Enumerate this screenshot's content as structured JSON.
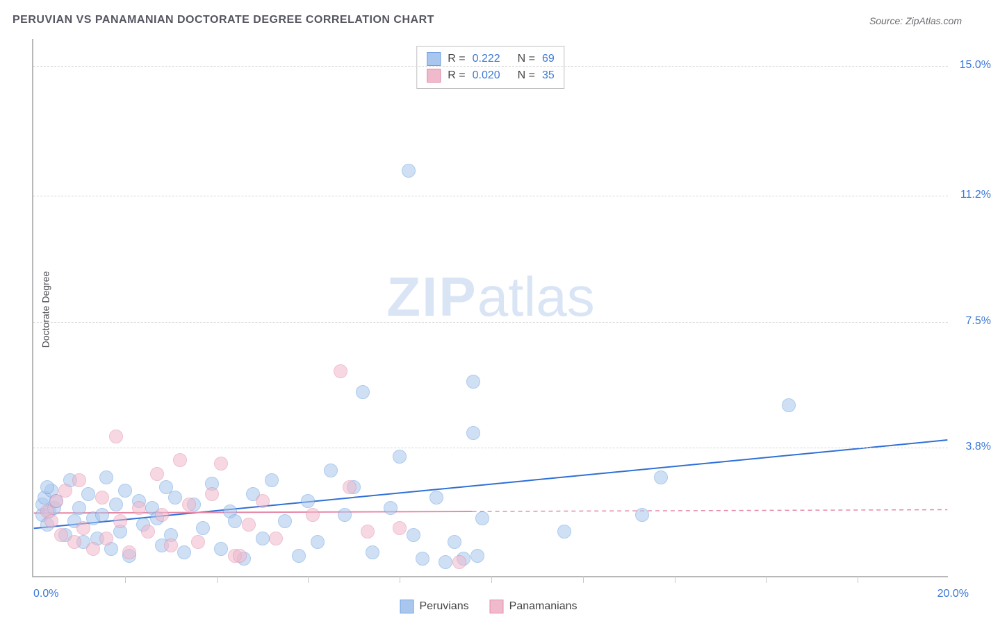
{
  "title": "PERUVIAN VS PANAMANIAN DOCTORATE DEGREE CORRELATION CHART",
  "source": "Source: ZipAtlas.com",
  "ylabel": "Doctorate Degree",
  "watermark_zip": "ZIP",
  "watermark_atlas": "atlas",
  "chart": {
    "type": "scatter",
    "xlim": [
      0,
      20
    ],
    "ylim": [
      0,
      15.8
    ],
    "x_min_label": "0.0%",
    "x_max_label": "20.0%",
    "x_tick_step": 2.0,
    "y_gridlines": [
      {
        "value": 3.8,
        "label": "3.8%"
      },
      {
        "value": 7.5,
        "label": "7.5%"
      },
      {
        "value": 11.2,
        "label": "11.2%"
      },
      {
        "value": 15.0,
        "label": "15.0%"
      }
    ],
    "grid_color": "#d6d6d6",
    "axis_color": "#b8b8b8",
    "tick_color": "#c8c8c8",
    "background_color": "#ffffff",
    "label_color_blue": "#3b78d8",
    "label_color_pink": "#d87ca0",
    "series": [
      {
        "name": "Peruvians",
        "fill": "#a9c7ee",
        "stroke": "#6a9fe0",
        "fill_opacity": 0.55,
        "marker_radius": 10,
        "r_value": "0.222",
        "n_value": "69",
        "trend": {
          "x0": 0,
          "y0": 1.4,
          "x1": 20,
          "y1": 4.0,
          "color": "#2f6fd6",
          "width": 2,
          "solid_until_x": 20
        },
        "points": [
          [
            0.2,
            1.8
          ],
          [
            0.2,
            2.1
          ],
          [
            0.25,
            2.3
          ],
          [
            0.3,
            1.5
          ],
          [
            0.35,
            1.9
          ],
          [
            0.4,
            2.5
          ],
          [
            0.45,
            2.0
          ],
          [
            0.5,
            2.2
          ],
          [
            0.7,
            1.2
          ],
          [
            0.8,
            2.8
          ],
          [
            0.9,
            1.6
          ],
          [
            1.0,
            2.0
          ],
          [
            1.1,
            1.0
          ],
          [
            1.2,
            2.4
          ],
          [
            1.3,
            1.7
          ],
          [
            1.4,
            1.1
          ],
          [
            1.6,
            2.9
          ],
          [
            1.7,
            0.8
          ],
          [
            1.8,
            2.1
          ],
          [
            1.9,
            1.3
          ],
          [
            2.0,
            2.5
          ],
          [
            2.1,
            0.6
          ],
          [
            2.3,
            2.2
          ],
          [
            2.4,
            1.5
          ],
          [
            2.6,
            2.0
          ],
          [
            2.8,
            0.9
          ],
          [
            2.9,
            2.6
          ],
          [
            3.0,
            1.2
          ],
          [
            3.1,
            2.3
          ],
          [
            3.3,
            0.7
          ],
          [
            3.5,
            2.1
          ],
          [
            3.7,
            1.4
          ],
          [
            3.9,
            2.7
          ],
          [
            4.1,
            0.8
          ],
          [
            4.3,
            1.9
          ],
          [
            4.6,
            0.5
          ],
          [
            4.8,
            2.4
          ],
          [
            5.0,
            1.1
          ],
          [
            5.2,
            2.8
          ],
          [
            5.5,
            1.6
          ],
          [
            5.8,
            0.6
          ],
          [
            6.0,
            2.2
          ],
          [
            6.2,
            1.0
          ],
          [
            6.5,
            3.1
          ],
          [
            6.8,
            1.8
          ],
          [
            7.0,
            2.6
          ],
          [
            7.2,
            5.4
          ],
          [
            7.4,
            0.7
          ],
          [
            7.8,
            2.0
          ],
          [
            8.0,
            3.5
          ],
          [
            8.2,
            11.9
          ],
          [
            8.3,
            1.2
          ],
          [
            8.5,
            0.5
          ],
          [
            8.8,
            2.3
          ],
          [
            9.0,
            0.4
          ],
          [
            9.2,
            1.0
          ],
          [
            9.4,
            0.5
          ],
          [
            9.6,
            5.7
          ],
          [
            9.6,
            4.2
          ],
          [
            9.7,
            0.6
          ],
          [
            9.8,
            1.7
          ],
          [
            11.6,
            1.3
          ],
          [
            13.3,
            1.8
          ],
          [
            13.7,
            2.9
          ],
          [
            16.5,
            5.0
          ],
          [
            0.3,
            2.6
          ],
          [
            1.5,
            1.8
          ],
          [
            2.7,
            1.7
          ],
          [
            4.4,
            1.6
          ]
        ]
      },
      {
        "name": "Panamanians",
        "fill": "#f1b9cc",
        "stroke": "#e08daa",
        "fill_opacity": 0.55,
        "marker_radius": 10,
        "r_value": "0.020",
        "n_value": "35",
        "trend": {
          "x0": 0,
          "y0": 1.85,
          "x1": 20,
          "y1": 1.95,
          "color": "#e589a7",
          "width": 2,
          "solid_until_x": 9.6
        },
        "points": [
          [
            0.3,
            1.9
          ],
          [
            0.4,
            1.6
          ],
          [
            0.5,
            2.2
          ],
          [
            0.6,
            1.2
          ],
          [
            0.7,
            2.5
          ],
          [
            0.9,
            1.0
          ],
          [
            1.0,
            2.8
          ],
          [
            1.1,
            1.4
          ],
          [
            1.3,
            0.8
          ],
          [
            1.5,
            2.3
          ],
          [
            1.6,
            1.1
          ],
          [
            1.8,
            4.1
          ],
          [
            1.9,
            1.6
          ],
          [
            2.1,
            0.7
          ],
          [
            2.3,
            2.0
          ],
          [
            2.5,
            1.3
          ],
          [
            2.7,
            3.0
          ],
          [
            2.8,
            1.8
          ],
          [
            3.0,
            0.9
          ],
          [
            3.2,
            3.4
          ],
          [
            3.4,
            2.1
          ],
          [
            3.6,
            1.0
          ],
          [
            3.9,
            2.4
          ],
          [
            4.1,
            3.3
          ],
          [
            4.4,
            0.6
          ],
          [
            4.5,
            0.6
          ],
          [
            4.7,
            1.5
          ],
          [
            5.0,
            2.2
          ],
          [
            5.3,
            1.1
          ],
          [
            6.1,
            1.8
          ],
          [
            6.7,
            6.0
          ],
          [
            6.9,
            2.6
          ],
          [
            7.3,
            1.3
          ],
          [
            8.0,
            1.4
          ],
          [
            9.3,
            0.4
          ]
        ]
      }
    ],
    "legend": [
      {
        "label": "Peruvians",
        "fill": "#a9c7ee",
        "stroke": "#6a9fe0"
      },
      {
        "label": "Panamanians",
        "fill": "#f1b9cc",
        "stroke": "#e08daa"
      }
    ]
  }
}
